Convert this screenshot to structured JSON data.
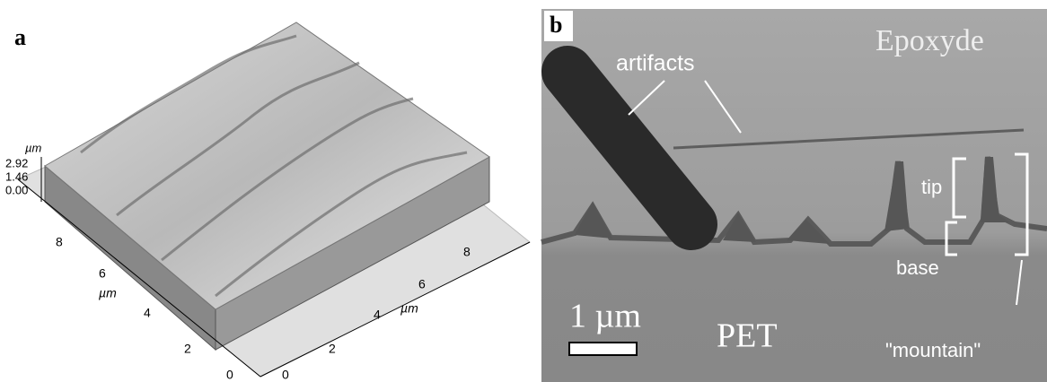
{
  "panels": [
    {
      "label": "a",
      "z_axis": {
        "unit": "µm",
        "ticks": [
          "2.92",
          "1.46",
          "0.00"
        ]
      },
      "left_axis": {
        "unit": "µm",
        "ticks": [
          "8",
          "6",
          "4",
          "2",
          "0"
        ]
      },
      "right_axis": {
        "unit": "µm",
        "ticks": [
          "0",
          "2",
          "4",
          "6",
          "8"
        ]
      }
    },
    {
      "label": "b",
      "annotations": {
        "top_phase": "Epoxyde",
        "artifacts": "artifacts",
        "tip": "tip",
        "base": "base",
        "mountain": "\"mountain\"",
        "bottom_phase": "PET"
      },
      "scale_bar": "1 µm"
    }
  ]
}
